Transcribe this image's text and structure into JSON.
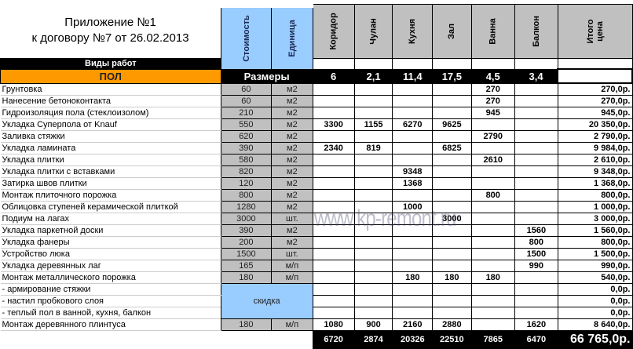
{
  "header": {
    "title_line1": "Приложение №1",
    "title_line2": "к договору №7 от 26.02.2013",
    "cost": "Стоимость",
    "unit": "Единица",
    "work_types": "Виды работ",
    "section": "ПОЛ",
    "sizes_label": "Размеры",
    "total_price": "Итого цена"
  },
  "rooms": [
    {
      "name": "Коридор",
      "size": "6",
      "sum": "6720"
    },
    {
      "name": "Чулан",
      "size": "2,1",
      "sum": "2874"
    },
    {
      "name": "Кухня",
      "size": "11,4",
      "sum": "20326"
    },
    {
      "name": "Зал",
      "size": "17,5",
      "sum": "22510"
    },
    {
      "name": "Ванна",
      "size": "4,5",
      "sum": "7865"
    },
    {
      "name": "Балкон",
      "size": "3,4",
      "sum": "6470"
    }
  ],
  "discount_label": "скидка",
  "rows": [
    {
      "name": "Грунтовка",
      "cost": "60",
      "unit": "м2",
      "values": [
        "",
        "",
        "",
        "",
        "270",
        ""
      ],
      "total": "270,0р."
    },
    {
      "name": "Нанесение бетоноконтакта",
      "cost": "60",
      "unit": "м2",
      "values": [
        "",
        "",
        "",
        "",
        "270",
        ""
      ],
      "total": "270,0р."
    },
    {
      "name": "Гидроизоляция пола (стеклоизолом)",
      "cost": "210",
      "unit": "м2",
      "values": [
        "",
        "",
        "",
        "",
        "945",
        ""
      ],
      "total": "945,0р."
    },
    {
      "name": "Укладка Суперпола от Knauf",
      "cost": "550",
      "unit": "м2",
      "values": [
        "3300",
        "1155",
        "6270",
        "9625",
        "",
        ""
      ],
      "total": "20 350,0р."
    },
    {
      "name": "Заливка стяжки",
      "cost": "620",
      "unit": "м2",
      "values": [
        "",
        "",
        "",
        "",
        "2790",
        ""
      ],
      "total": "2 790,0р."
    },
    {
      "name": "Укладка ламината",
      "cost": "390",
      "unit": "м2",
      "values": [
        "2340",
        "819",
        "",
        "6825",
        "",
        ""
      ],
      "total": "9 984,0р."
    },
    {
      "name": "Укладка плитки",
      "cost": "580",
      "unit": "м2",
      "values": [
        "",
        "",
        "",
        "",
        "2610",
        ""
      ],
      "total": "2 610,0р."
    },
    {
      "name": "Укладка плитки с вставками",
      "cost": "820",
      "unit": "м2",
      "values": [
        "",
        "",
        "9348",
        "",
        "",
        ""
      ],
      "total": "9 348,0р."
    },
    {
      "name": "Затирка швов плитки",
      "cost": "120",
      "unit": "м2",
      "values": [
        "",
        "",
        "1368",
        "",
        "",
        ""
      ],
      "total": "1 368,0р."
    },
    {
      "name": "Монтаж плиточного порожка",
      "cost": "800",
      "unit": "м2",
      "values": [
        "",
        "",
        "",
        "",
        "800",
        ""
      ],
      "total": "800,0р."
    },
    {
      "name": "Облицовка ступеней керамической плиткой",
      "cost": "1280",
      "unit": "м2",
      "values": [
        "",
        "",
        "1000",
        "",
        "",
        ""
      ],
      "total": "1 000,0р."
    },
    {
      "name": "Подиум на лагах",
      "cost": "3000",
      "unit": "шт.",
      "values": [
        "",
        "",
        "",
        "3000",
        "",
        ""
      ],
      "total": "3 000,0р."
    },
    {
      "name": "Укладка паркетной доски",
      "cost": "390",
      "unit": "м2",
      "values": [
        "",
        "",
        "",
        "",
        "",
        "1560"
      ],
      "total": "1 560,0р."
    },
    {
      "name": "Укладка фанеры",
      "cost": "200",
      "unit": "м2",
      "values": [
        "",
        "",
        "",
        "",
        "",
        "800"
      ],
      "total": "800,0р."
    },
    {
      "name": "Устройство люка",
      "cost": "1500",
      "unit": "шт.",
      "values": [
        "",
        "",
        "",
        "",
        "",
        "1500"
      ],
      "total": "1 500,0р."
    },
    {
      "name": "Укладка деревянных лаг",
      "cost": "165",
      "unit": "м/п",
      "values": [
        "",
        "",
        "",
        "",
        "",
        "990"
      ],
      "total": "990,0р."
    },
    {
      "name": "Монтаж металлического порожка",
      "cost": "180",
      "unit": "м/п",
      "values": [
        "",
        "",
        "180",
        "180",
        "180",
        ""
      ],
      "total": "540,0р."
    },
    {
      "name": "- армирование стяжки",
      "discount": true,
      "values": [
        "",
        "",
        "",
        "",
        "",
        ""
      ],
      "total": "0,0р."
    },
    {
      "name": "- настил пробкового слоя",
      "discount": true,
      "values": [
        "",
        "",
        "",
        "",
        "",
        ""
      ],
      "total": "0,0р."
    },
    {
      "name": "- теплый пол в ванной, кухня, балкон",
      "discount": true,
      "values": [
        "",
        "",
        "",
        "",
        "",
        ""
      ],
      "total": "0,0р."
    },
    {
      "name": "Монтаж деревянного плинтуса",
      "cost": "180",
      "unit": "м/п",
      "values": [
        "1080",
        "900",
        "2160",
        "2880",
        "",
        "1620"
      ],
      "total": "8 640,0р."
    }
  ],
  "grand_total": "66 765,0р.",
  "watermark": "www.kp-remont.ru",
  "colors": {
    "orange": "#ff9900",
    "blue": "#99ccff",
    "gray": "#c0c0c0",
    "black": "#000000"
  }
}
